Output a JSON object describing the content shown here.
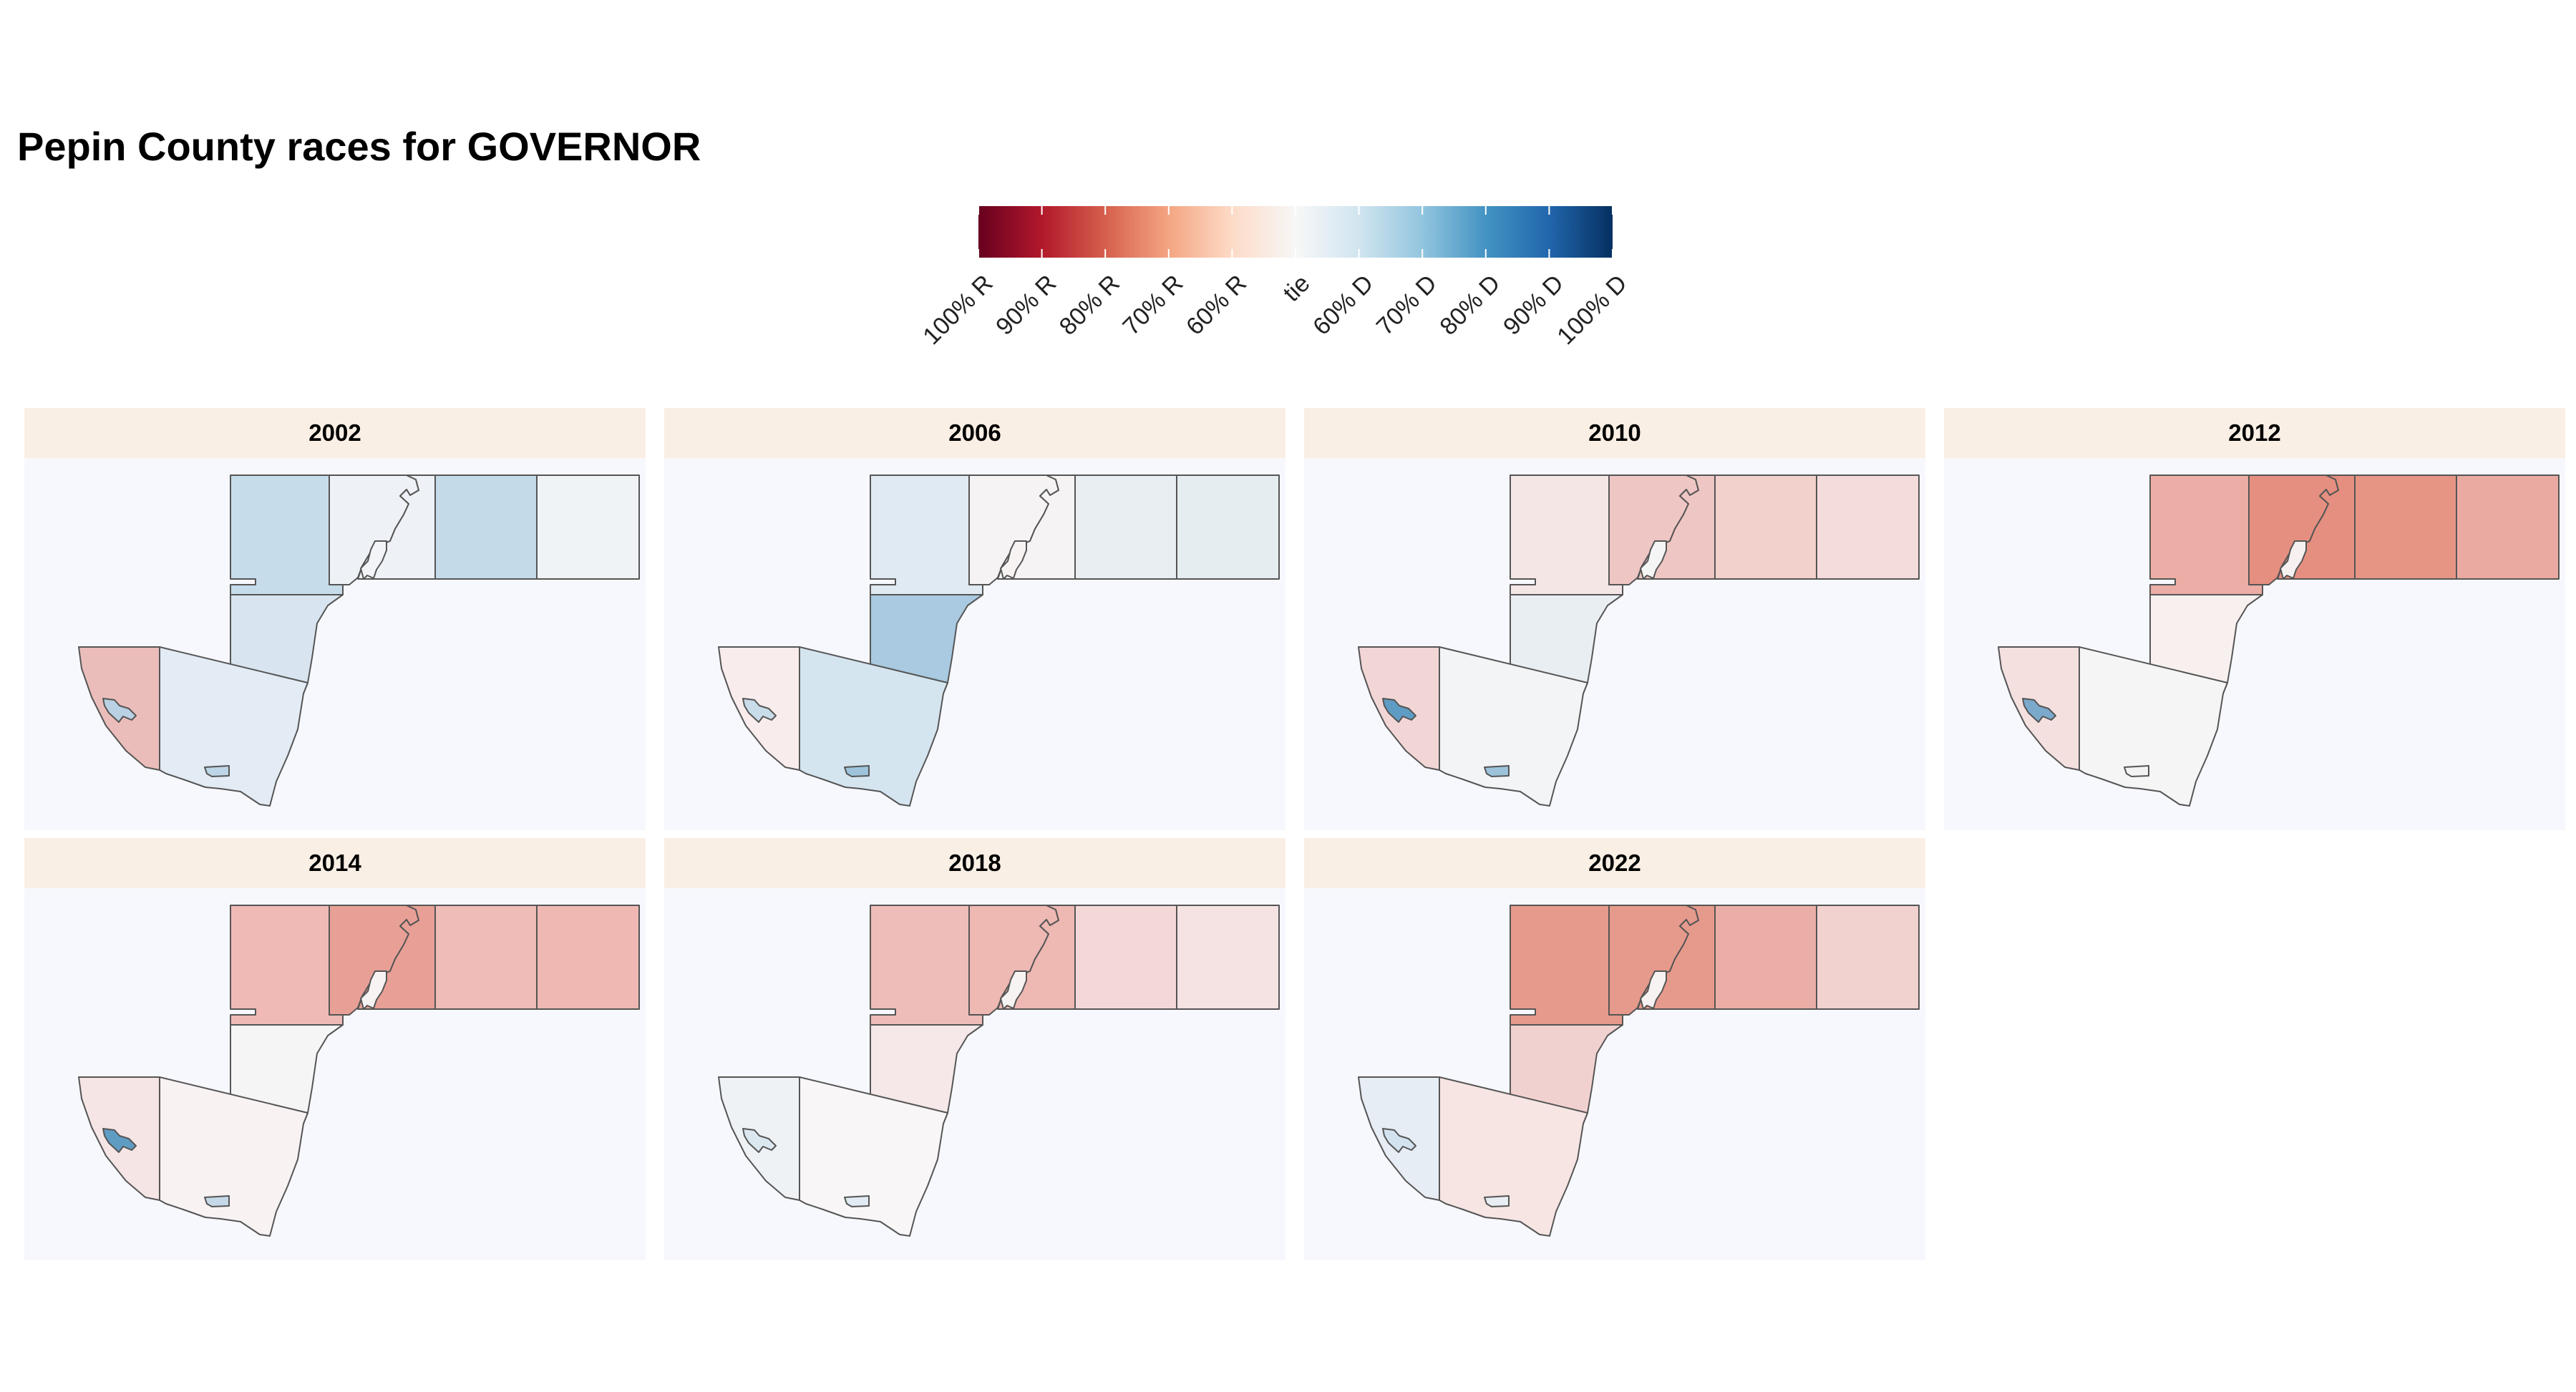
{
  "title": "Pepin County races for GOVERNOR",
  "legend": {
    "labels": [
      "100% R",
      "90% R",
      "80% R",
      "70% R",
      "60% R",
      "tie",
      "60% D",
      "70% D",
      "80% D",
      "90% D",
      "100% D"
    ],
    "colors": [
      "#67001f",
      "#b2182b",
      "#d6604d",
      "#f4a582",
      "#fddbc7",
      "#f7f7f7",
      "#d1e5f0",
      "#92c5de",
      "#4393c3",
      "#2166ac",
      "#053061"
    ]
  },
  "panels": [
    {
      "year": "2002",
      "fills": {
        "nw": "#c6dceb",
        "ne": "#eef1f5",
        "e1": "#c4dae9",
        "e2": "#f0f3f6",
        "mid": "#d8e5f0",
        "sw": "#ebbdba",
        "sc": "#e3ebf4",
        "cutout": "#f2f4f7",
        "strips": "#b9d1e2",
        "blob": "#bdd5e6"
      }
    },
    {
      "year": "2006",
      "fills": {
        "nw": "#dfeaf2",
        "ne": "#f5f3f3",
        "e1": "#e8eef2",
        "e2": "#e6edf1",
        "mid": "#a9cae0",
        "sw": "#f8ecec",
        "sc": "#d5e5f0",
        "cutout": "#f7f3f2",
        "strips": "#c9dcea",
        "blob": "#9ec4dc"
      }
    },
    {
      "year": "2010",
      "fills": {
        "nw": "#f5e6e6",
        "ne": "#eec6c3",
        "e1": "#f2d0cc",
        "e2": "#f5dcdc",
        "mid": "#e9eef2",
        "sw": "#f2d6d6",
        "sc": "#f2f4f5",
        "cutout": "#f5f5f5",
        "strips": "#5f9cc4",
        "blob": "#9cc3da"
      }
    },
    {
      "year": "2012",
      "fills": {
        "nw": "#ebada5",
        "ne": "#e58f80",
        "e1": "#e69585",
        "e2": "#eaaaa2",
        "mid": "#f8f0ee",
        "sw": "#f5e0e0",
        "sc": "#f5f5f5",
        "cutout": "#f6f1f0",
        "strips": "#7aa9cb",
        "blob": "#f3f3f3"
      }
    },
    {
      "year": "2014",
      "fills": {
        "nw": "#efbab6",
        "ne": "#e8a096",
        "e1": "#f0bcb8",
        "e2": "#efb8b3",
        "mid": "#f5f5f5",
        "sw": "#f6e5e5",
        "sc": "#f8f2f2",
        "cutout": "#f6f3f2",
        "strips": "#5f9cc4",
        "blob": "#c5d8e7"
      }
    },
    {
      "year": "2018",
      "fills": {
        "nw": "#efbdb9",
        "ne": "#eeb8b3",
        "e1": "#f4d8d8",
        "e2": "#f5e2e2",
        "mid": "#f6e8e8",
        "sw": "#eef2f5",
        "sc": "#f8f6f6",
        "cutout": "#f6f3f2",
        "strips": "#dce8f0",
        "blob": "#e2ebf3"
      }
    },
    {
      "year": "2022",
      "fills": {
        "nw": "#e69a8c",
        "ne": "#e69a8c",
        "e1": "#ebaea6",
        "e2": "#f2d2cf",
        "mid": "#f1d1cf",
        "sw": "#e7edf4",
        "sc": "#f6e5e3",
        "cutout": "#f6f3f2",
        "strips": "#d2e2ee",
        "blob": "#e9eef3"
      }
    }
  ]
}
